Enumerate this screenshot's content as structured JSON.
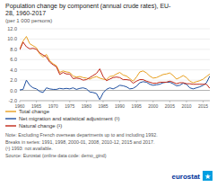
{
  "chart_data": {
    "type": "line",
    "title": "Population change by component (annual crude rates), EU-\n28, 1960-2017",
    "subtitle": "(per 1 000 persons)",
    "x": [
      1960,
      1961,
      1962,
      1963,
      1964,
      1965,
      1966,
      1967,
      1968,
      1969,
      1970,
      1971,
      1972,
      1973,
      1974,
      1975,
      1976,
      1977,
      1978,
      1979,
      1980,
      1981,
      1982,
      1983,
      1984,
      1985,
      1986,
      1987,
      1988,
      1989,
      1990,
      1991,
      1992,
      1993,
      1994,
      1995,
      1996,
      1997,
      1998,
      1999,
      2000,
      2001,
      2002,
      2003,
      2004,
      2005,
      2006,
      2007,
      2008,
      2009,
      2010,
      2011,
      2012,
      2013,
      2014,
      2015,
      2016,
      2017
    ],
    "series": [
      {
        "name": "Total change",
        "color": "#e8a020",
        "values": [
          8.0,
          9.6,
          10.5,
          9.1,
          8.7,
          8.3,
          7.1,
          6.5,
          7.0,
          5.8,
          5.2,
          4.8,
          3.5,
          3.8,
          3.6,
          3.5,
          2.8,
          2.6,
          2.7,
          2.5,
          2.4,
          2.2,
          2.5,
          2.7,
          2.4,
          2.2,
          2.1,
          2.7,
          2.8,
          3.2,
          3.5,
          3.0,
          2.8,
          2.3,
          1.8,
          2.6,
          3.6,
          3.8,
          3.4,
          2.8,
          2.4,
          2.5,
          2.8,
          3.1,
          3.2,
          3.4,
          2.9,
          2.2,
          2.5,
          2.9,
          2.5,
          1.8,
          1.5,
          1.7,
          1.9,
          2.2,
          2.7,
          3.2
        ]
      },
      {
        "name": "Net migration and statistical adjustment (¹)",
        "color": "#2050a0",
        "values": [
          0.1,
          0.2,
          2.0,
          1.0,
          0.5,
          0.3,
          -0.2,
          -0.4,
          0.5,
          0.3,
          0.2,
          0.2,
          0.4,
          0.3,
          0.4,
          0.3,
          0.5,
          0.2,
          0.4,
          0.5,
          0.3,
          -0.3,
          -0.4,
          -0.6,
          -1.8,
          -0.5,
          0.2,
          0.5,
          0.3,
          0.6,
          1.0,
          0.9,
          0.7,
          0.3,
          0.4,
          0.8,
          1.5,
          1.7,
          1.6,
          1.2,
          1.0,
          1.1,
          1.2,
          1.5,
          1.6,
          1.6,
          1.3,
          0.9,
          1.0,
          1.4,
          1.2,
          0.5,
          0.3,
          0.5,
          0.7,
          1.0,
          1.5,
          2.8
        ]
      },
      {
        "name": "Natural change (¹)",
        "color": "#c02818",
        "values": [
          7.9,
          9.4,
          8.5,
          8.1,
          8.2,
          8.0,
          7.3,
          6.9,
          6.5,
          5.5,
          5.0,
          4.6,
          3.1,
          3.5,
          3.2,
          3.2,
          2.3,
          2.4,
          2.3,
          2.0,
          2.1,
          2.5,
          2.9,
          3.3,
          4.2,
          2.7,
          1.9,
          2.2,
          2.5,
          2.6,
          2.5,
          2.1,
          2.1,
          2.0,
          1.4,
          1.8,
          2.1,
          2.1,
          1.8,
          1.6,
          1.4,
          1.4,
          1.6,
          1.6,
          1.6,
          1.8,
          1.6,
          1.3,
          1.5,
          1.5,
          1.3,
          1.3,
          1.2,
          1.2,
          1.2,
          1.2,
          1.2,
          0.4
        ]
      }
    ],
    "xlim": [
      1960,
      2017
    ],
    "xticks": [
      1960,
      1965,
      1970,
      1975,
      1980,
      1985,
      1990,
      1995,
      2000,
      2005,
      2010,
      2015
    ],
    "ylim": [
      -2.0,
      12.0
    ],
    "yticks": [
      {
        "value": -2.0,
        "label": "-2.0"
      },
      {
        "value": 0.0,
        "label": "0.0"
      },
      {
        "value": 2.0,
        "label": "2.0"
      },
      {
        "value": 4.0,
        "label": "4.0"
      },
      {
        "value": 6.0,
        "label": "6.0"
      },
      {
        "value": 8.0,
        "label": "8.0"
      },
      {
        "value": 10.0,
        "label": "10.0"
      },
      {
        "value": 12.0,
        "label": "12.0"
      }
    ],
    "grid": true,
    "legend": "bottom",
    "notes": [
      "Note: Excluding French overseas departments up to and including 1992.",
      "Breaks in series: 1991, 1998, 2000-01, 2008, 2010-12, 2015 and 2017.",
      "(¹) 1993: not available.",
      "Source: Eurostat (online data code: demo_gind)"
    ],
    "annotations": [
      "eurostat",
      "★"
    ]
  }
}
